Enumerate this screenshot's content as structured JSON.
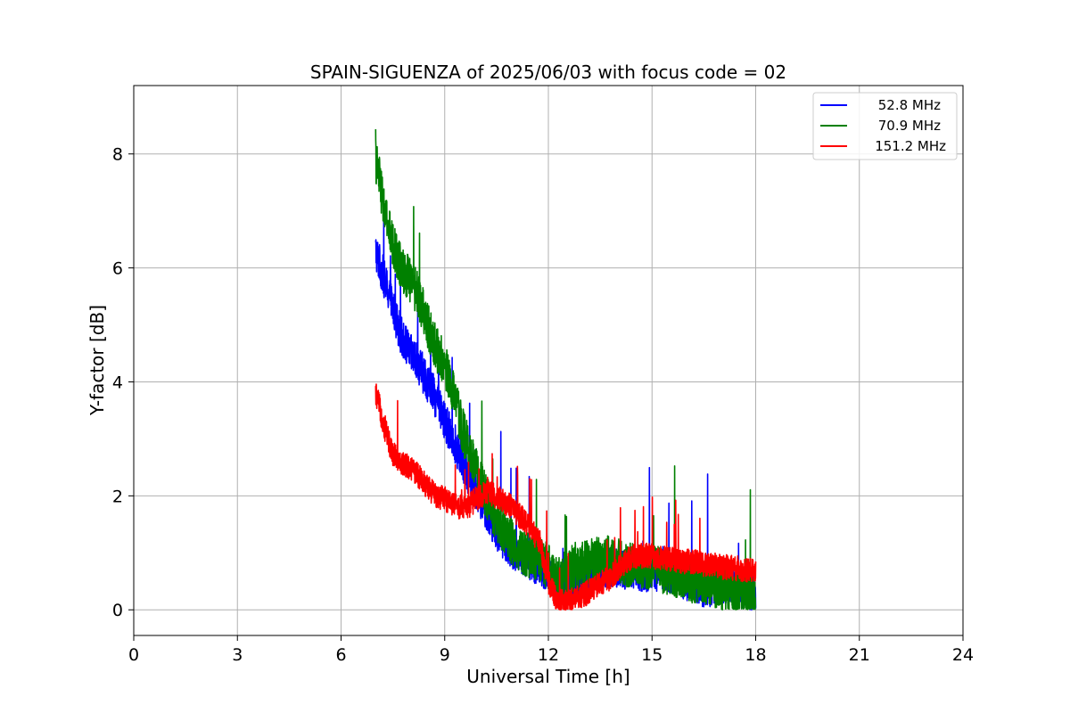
{
  "chart_data": {
    "type": "line",
    "title": "SPAIN-SIGUENZA of 2025/06/03 with focus code = 02",
    "xlabel": "Universal Time [h]",
    "ylabel": "Y-factor [dB]",
    "xlim": [
      0,
      24
    ],
    "ylim": [
      -0.45,
      9.2
    ],
    "xticks": [
      0,
      3,
      6,
      9,
      12,
      15,
      18,
      21,
      24
    ],
    "yticks": [
      0,
      2,
      4,
      6,
      8
    ],
    "grid": true,
    "legend_position": "top-right",
    "series": [
      {
        "name": "52.8 MHz",
        "color": "#0000ff",
        "x": [
          7.0,
          7.1,
          7.25,
          7.5,
          7.75,
          8.0,
          8.25,
          8.5,
          8.75,
          9.0,
          9.25,
          9.5,
          9.75,
          10.0,
          10.25,
          10.5,
          10.75,
          11.0,
          11.25,
          11.5,
          11.75,
          12.0,
          12.25,
          12.5,
          12.75,
          13.0,
          13.25,
          13.5,
          13.75,
          14.0,
          14.25,
          14.5,
          14.75,
          15.0,
          15.25,
          15.5,
          15.75,
          16.0,
          16.25,
          16.5,
          16.75,
          17.0,
          17.25,
          17.5,
          17.75,
          18.0
        ],
        "y": [
          6.3,
          6.1,
          5.8,
          5.3,
          4.8,
          4.5,
          4.3,
          4.0,
          3.7,
          3.3,
          3.0,
          2.6,
          2.3,
          2.0,
          1.7,
          1.4,
          1.2,
          1.05,
          0.95,
          0.85,
          0.75,
          0.6,
          0.45,
          0.5,
          0.55,
          0.6,
          0.65,
          0.7,
          0.72,
          0.75,
          0.7,
          0.7,
          0.65,
          0.7,
          0.65,
          0.65,
          0.6,
          0.5,
          0.45,
          0.4,
          0.4,
          0.45,
          0.45,
          0.4,
          0.35,
          0.3
        ],
        "noise": 0.35
      },
      {
        "name": "70.9 MHz",
        "color": "#008000",
        "x": [
          7.0,
          7.1,
          7.25,
          7.5,
          7.75,
          8.0,
          8.25,
          8.5,
          8.75,
          9.0,
          9.25,
          9.5,
          9.75,
          10.0,
          10.25,
          10.5,
          10.75,
          11.0,
          11.25,
          11.5,
          11.75,
          12.0,
          12.25,
          12.5,
          12.75,
          13.0,
          13.25,
          13.5,
          13.75,
          14.0,
          14.25,
          14.5,
          14.75,
          15.0,
          15.25,
          15.5,
          15.75,
          16.0,
          16.25,
          16.5,
          16.75,
          17.0,
          17.25,
          17.5,
          17.75,
          18.0
        ],
        "y": [
          7.9,
          7.6,
          7.0,
          6.4,
          6.0,
          5.8,
          5.5,
          5.0,
          4.6,
          4.3,
          3.8,
          3.2,
          2.7,
          2.3,
          1.9,
          1.6,
          1.35,
          1.15,
          1.0,
          0.95,
          0.9,
          0.75,
          0.5,
          0.6,
          0.7,
          0.8,
          0.85,
          0.9,
          0.9,
          0.85,
          0.8,
          0.8,
          0.75,
          0.75,
          0.7,
          0.65,
          0.6,
          0.55,
          0.5,
          0.5,
          0.45,
          0.4,
          0.35,
          0.3,
          0.25,
          0.15
        ],
        "noise": 0.4
      },
      {
        "name": "151.2 MHz",
        "color": "#ff0000",
        "x": [
          7.0,
          7.1,
          7.25,
          7.5,
          7.75,
          8.0,
          8.25,
          8.5,
          8.75,
          9.0,
          9.25,
          9.5,
          9.75,
          10.0,
          10.25,
          10.5,
          10.75,
          11.0,
          11.25,
          11.5,
          11.75,
          12.0,
          12.25,
          12.5,
          12.75,
          13.0,
          13.25,
          13.5,
          13.75,
          14.0,
          14.25,
          14.5,
          14.75,
          15.0,
          15.25,
          15.5,
          15.75,
          16.0,
          16.25,
          16.5,
          16.75,
          17.0,
          17.25,
          17.5,
          17.75,
          18.0
        ],
        "y": [
          3.8,
          3.6,
          3.2,
          2.75,
          2.6,
          2.5,
          2.35,
          2.15,
          2.0,
          1.95,
          1.85,
          1.8,
          1.85,
          2.0,
          2.05,
          2.0,
          1.9,
          1.75,
          1.6,
          1.4,
          1.2,
          0.5,
          0.15,
          0.15,
          0.18,
          0.25,
          0.35,
          0.45,
          0.55,
          0.7,
          0.85,
          0.95,
          0.95,
          0.95,
          0.9,
          0.9,
          0.85,
          0.85,
          0.85,
          0.8,
          0.8,
          0.75,
          0.75,
          0.7,
          0.7,
          0.7
        ],
        "noise": 0.22
      }
    ]
  }
}
